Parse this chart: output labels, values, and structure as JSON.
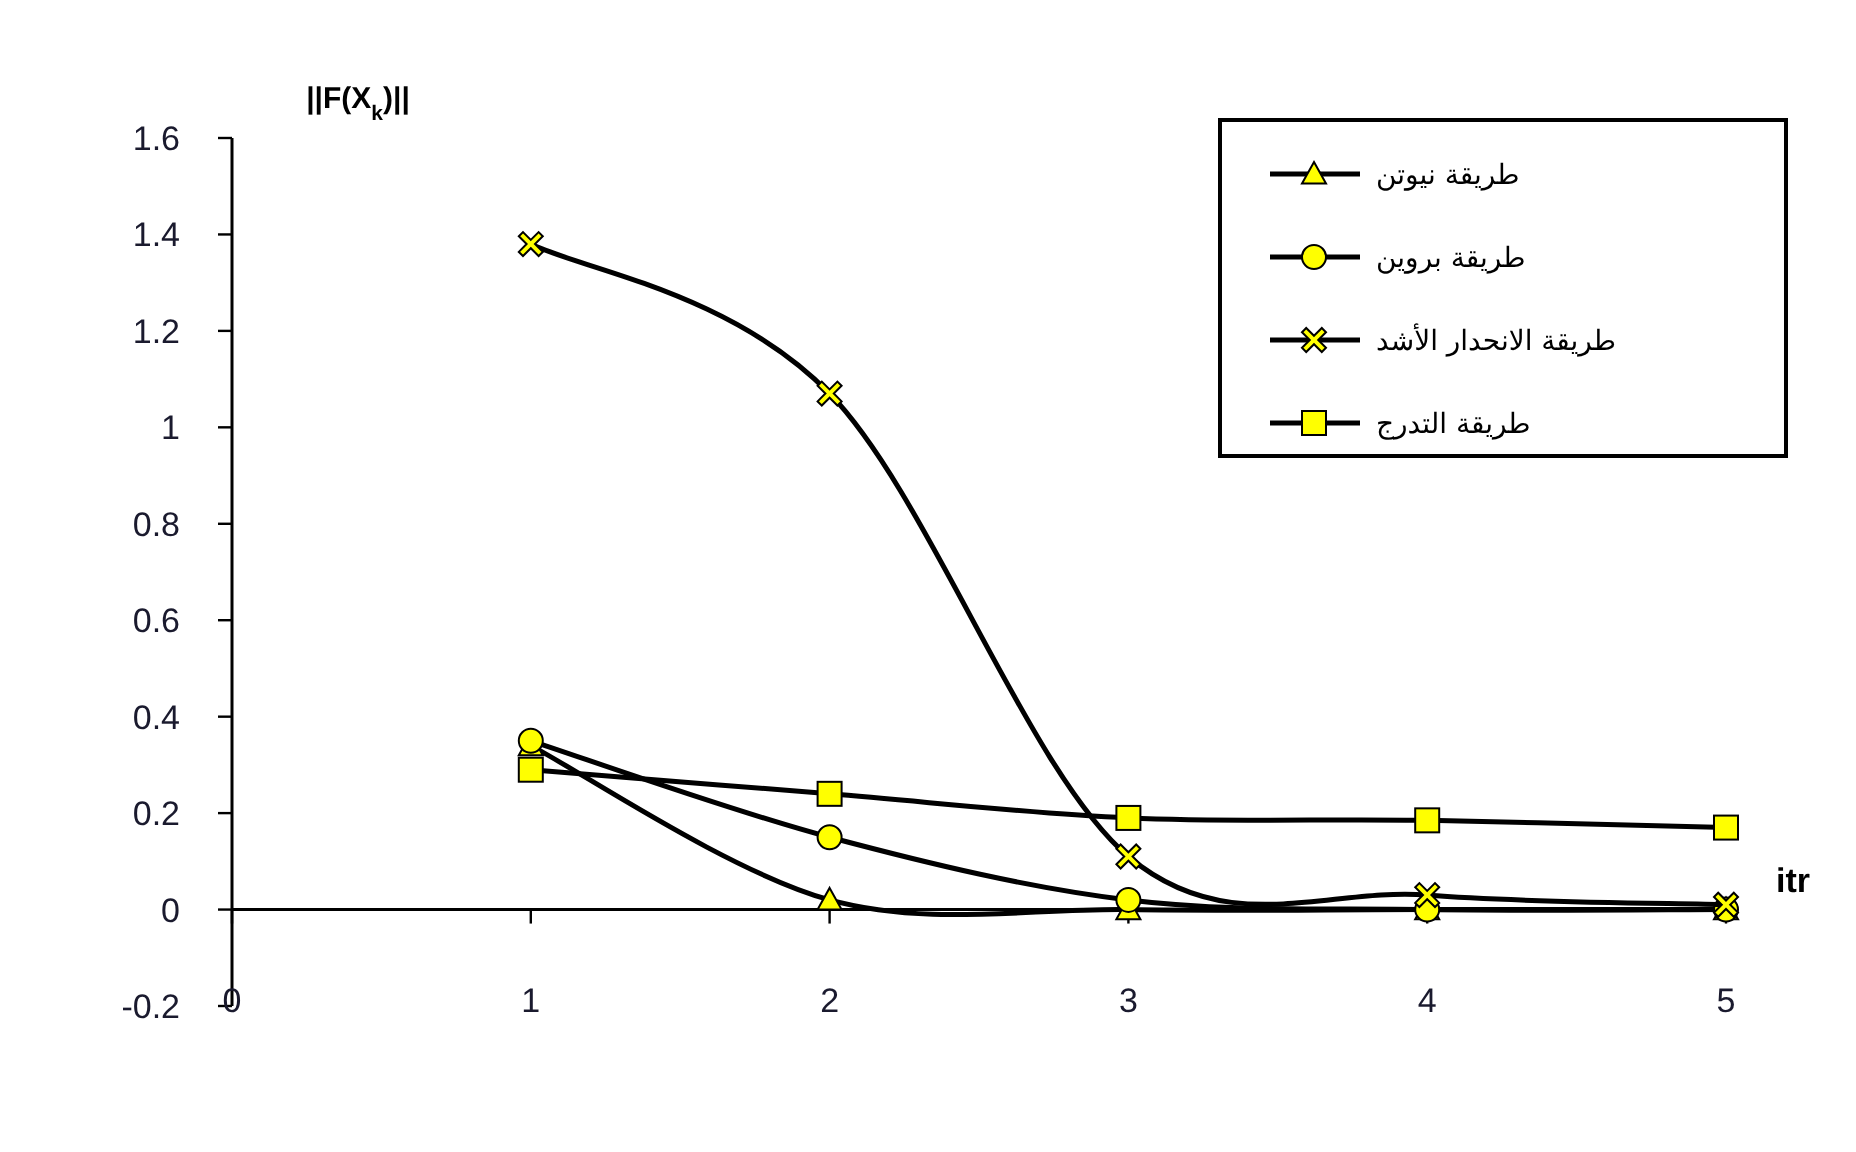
{
  "chart_data": {
    "type": "line",
    "xlabel": "itr",
    "ylabel": "||F(X$_{k}$)||",
    "x": [
      1,
      2,
      3,
      4,
      5
    ],
    "series": [
      {
        "name": "طريقة نيوتن",
        "color": "#ffff00",
        "marker": "triangle",
        "values": [
          0.34,
          0.02,
          0,
          0,
          0
        ]
      },
      {
        "name": "طريقة بروين",
        "color": "#ffff00",
        "marker": "circle",
        "values": [
          0.35,
          0.15,
          0.02,
          0,
          0
        ]
      },
      {
        "name": "طريقة الانحدار الأشد",
        "color": "#ffff00",
        "marker": "cross",
        "values": [
          1.38,
          1.07,
          0.11,
          0.03,
          0.01
        ]
      },
      {
        "name": "طريقة التدرج",
        "color": "#ffff00",
        "marker": "square",
        "values": [
          0.29,
          0.24,
          0.19,
          0.185,
          0.17
        ]
      }
    ],
    "xlim": [
      0,
      5
    ],
    "xticks": [
      0,
      1,
      2,
      3,
      4,
      5
    ],
    "ylim": [
      -0.2,
      1.6
    ],
    "yticks": [
      -0.2,
      0,
      0.2,
      0.4,
      0.6,
      0.8,
      1,
      1.2,
      1.4,
      1.6
    ],
    "legend": "top right",
    "line_style": "solid"
  }
}
